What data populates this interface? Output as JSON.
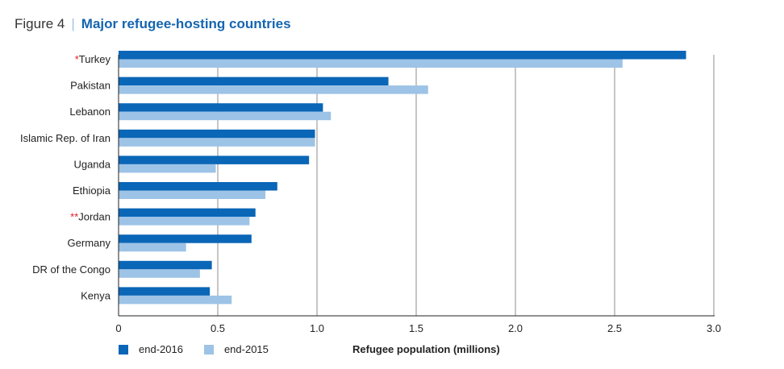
{
  "header": {
    "figure_number": "Figure 4",
    "separator": "|",
    "title": "Major refugee-hosting countries"
  },
  "colors": {
    "end2016": "#0a66b7",
    "end2015": "#9dc3e6",
    "title": "#1565b0",
    "asterisk": "#e31b23",
    "grid": "#8c8c8c"
  },
  "chart_data": {
    "type": "bar",
    "orientation": "horizontal",
    "categories": [
      "Turkey",
      "Pakistan",
      "Lebanon",
      "Islamic Rep. of Iran",
      "Uganda",
      "Ethiopia",
      "Jordan",
      "Germany",
      "DR of the Congo",
      "Kenya"
    ],
    "category_markers": [
      "*",
      "",
      "",
      "",
      "",
      "",
      "**",
      "",
      "",
      ""
    ],
    "series": [
      {
        "name": "end-2016",
        "values": [
          2.86,
          1.36,
          1.03,
          0.99,
          0.96,
          0.8,
          0.69,
          0.67,
          0.47,
          0.46
        ]
      },
      {
        "name": "end-2015",
        "values": [
          2.54,
          1.56,
          1.07,
          0.99,
          0.49,
          0.74,
          0.66,
          0.34,
          0.41,
          0.57
        ]
      }
    ],
    "xlabel": "Refugee population (millions)",
    "xlim": [
      0,
      3.0
    ],
    "xticks": [
      "0",
      "0.5",
      "1.0",
      "1.5",
      "2.0",
      "2.5",
      "3.0"
    ],
    "grid": "vertical",
    "legend_position": "bottom-left"
  }
}
